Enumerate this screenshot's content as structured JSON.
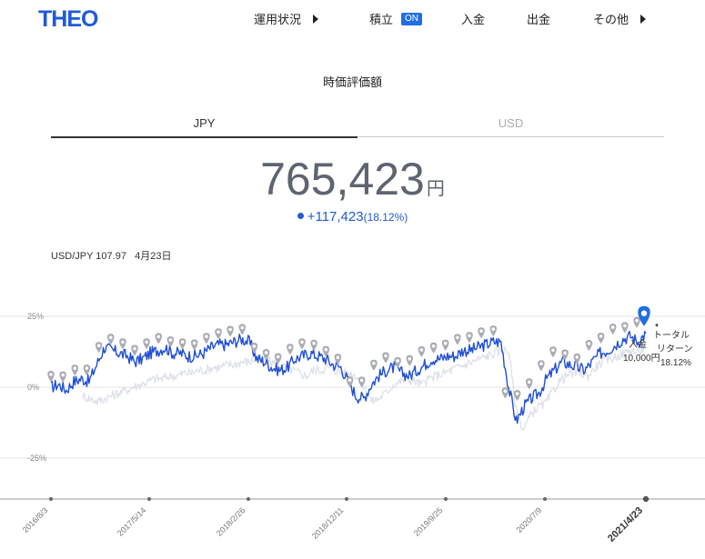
{
  "brand": {
    "logo": "THEO"
  },
  "nav": {
    "portfolio": "運用状況",
    "tsumitate": "積立",
    "tsumitate_badge": "ON",
    "deposit": "入金",
    "withdraw": "出金",
    "other": "その他"
  },
  "section_title": "時価評価額",
  "tabs": {
    "jpy": "JPY",
    "usd": "USD",
    "active": "JPY"
  },
  "valuation": {
    "amount": "765,423",
    "currency_unit": "円",
    "change": "+117,423",
    "change_pct": "(18.12%)"
  },
  "fx": {
    "label": "USD/JPY 107.97",
    "date": "4月23日"
  },
  "colors": {
    "accent": "#1f5bd8",
    "marker": "#a9acb2",
    "benchmark": "#dfe1ea"
  },
  "chart_data": {
    "type": "line",
    "y_ticks": [
      "25%",
      "0%",
      "-25%"
    ],
    "ylim": [
      -40,
      35
    ],
    "x_tick_labels": [
      "2016/8/3",
      "2017/5/14",
      "2018/2/26",
      "2018/12/11",
      "2019/9/25",
      "2020/7/9",
      "2021/4/23"
    ],
    "series": [
      {
        "values": [
          0,
          1,
          -1,
          2,
          3,
          2,
          8,
          14,
          13,
          12,
          11,
          9,
          10,
          12,
          13,
          14,
          12,
          12,
          11,
          11,
          12,
          14,
          15,
          15,
          16,
          17,
          16,
          10,
          9,
          7,
          6,
          7,
          10,
          11,
          12,
          11,
          10,
          8,
          7,
          2,
          -3,
          -4,
          1,
          4,
          6,
          7,
          5,
          4,
          6,
          8,
          10,
          10,
          11,
          11,
          13,
          13,
          14,
          15,
          16,
          16,
          0,
          -12,
          -7,
          -4,
          -2,
          3,
          6,
          9,
          8,
          7,
          6,
          9,
          12,
          13,
          15,
          17,
          18,
          16,
          19
        ]
      },
      {
        "values": [
          -3,
          -4,
          -5,
          -4,
          -3,
          -2,
          -1,
          0,
          1,
          2,
          3,
          3,
          4,
          4,
          5,
          5,
          6,
          6,
          7,
          7,
          8,
          8,
          9,
          9,
          10,
          10,
          9,
          8,
          7,
          6,
          5,
          4,
          6,
          6,
          7,
          6,
          5,
          5,
          4,
          0,
          -5,
          -4,
          -2,
          1,
          2,
          3,
          2,
          1,
          3,
          4,
          5,
          6,
          7,
          8,
          9,
          10,
          11,
          12,
          13,
          13,
          -8,
          -15,
          -10,
          -7,
          -6,
          -2,
          2,
          4,
          5,
          5,
          4,
          7,
          9,
          10,
          11,
          12,
          13,
          12,
          15
        ]
      }
    ]
  },
  "markers": {
    "deposit_label": "入金",
    "deposit_amount": "10,000円",
    "total_return_label_1": "トータル",
    "total_return_label_2": "リターン",
    "total_return_pct": "18.12%"
  }
}
